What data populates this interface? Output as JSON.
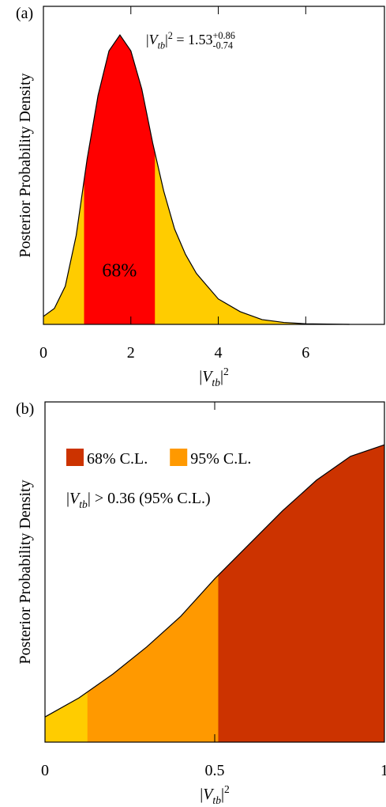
{
  "chart_data": [
    {
      "type": "area",
      "panel_label": "(a)",
      "ylabel": "Posterior Probability Density",
      "xlabel": [
        {
          "text": "|"
        },
        {
          "text": "V",
          "style": "italic"
        },
        {
          "text": "tb",
          "style": "sub"
        },
        {
          "text": "|"
        },
        {
          "text": "2",
          "style": "sup"
        }
      ],
      "annotation": [
        {
          "text": "|"
        },
        {
          "text": "V",
          "style": "italic"
        },
        {
          "text": "tb",
          "style": "sub"
        },
        {
          "text": "|"
        },
        {
          "text": "2",
          "style": "sup"
        },
        {
          "text": " = 1.53"
        },
        {
          "text": "+0.86",
          "style": "sup"
        },
        {
          "text": "-0.74",
          "style": "sub-under"
        }
      ],
      "x": [
        0,
        0.25,
        0.5,
        0.75,
        1,
        1.25,
        1.5,
        1.75,
        2,
        2.25,
        2.5,
        2.75,
        3,
        3.25,
        3.5,
        4,
        4.5,
        5,
        5.5,
        6,
        7
      ],
      "values": [
        0.025,
        0.05,
        0.12,
        0.28,
        0.52,
        0.72,
        0.86,
        0.91,
        0.86,
        0.74,
        0.57,
        0.42,
        0.3,
        0.22,
        0.16,
        0.08,
        0.04,
        0.015,
        0.006,
        0.002,
        0
      ],
      "fill": "#ffcc00",
      "line_color": "#000000",
      "bands": [
        {
          "name": "68%",
          "range": [
            0.93,
            2.55
          ],
          "color": "#ff0000"
        }
      ],
      "xlim": [
        0,
        7.8
      ],
      "ylim": [
        0,
        1
      ],
      "xticks": [
        0,
        2,
        4,
        6
      ]
    },
    {
      "type": "area",
      "panel_label": "(b)",
      "ylabel": "Posterior Probability Density",
      "xlabel": [
        {
          "text": "|"
        },
        {
          "text": "V",
          "style": "italic"
        },
        {
          "text": "tb",
          "style": "sub"
        },
        {
          "text": "|"
        },
        {
          "text": "2",
          "style": "sup"
        }
      ],
      "annotation": [
        {
          "text": "|"
        },
        {
          "text": "V",
          "style": "italic"
        },
        {
          "text": "tb",
          "style": "sub"
        },
        {
          "text": "| > 0.36 (95% C.L.)"
        }
      ],
      "x": [
        0,
        0.1,
        0.2,
        0.3,
        0.4,
        0.5,
        0.6,
        0.7,
        0.8,
        0.9,
        1
      ],
      "values": [
        0.074,
        0.13,
        0.2,
        0.28,
        0.37,
        0.48,
        0.58,
        0.68,
        0.77,
        0.84,
        0.874
      ],
      "fill": "#ffcc00",
      "line_color": "#000000",
      "bands": [
        {
          "name": "68% C.L.",
          "range": [
            0.51,
            1
          ],
          "color": "#cc3300"
        },
        {
          "name": "95% C.L.",
          "range": [
            0.125,
            0.51
          ],
          "color": "#ff9900"
        }
      ],
      "legend": "upper left",
      "xlim": [
        0,
        1
      ],
      "ylim": [
        0,
        1
      ],
      "xticks": [
        0,
        0.5,
        1
      ]
    }
  ]
}
